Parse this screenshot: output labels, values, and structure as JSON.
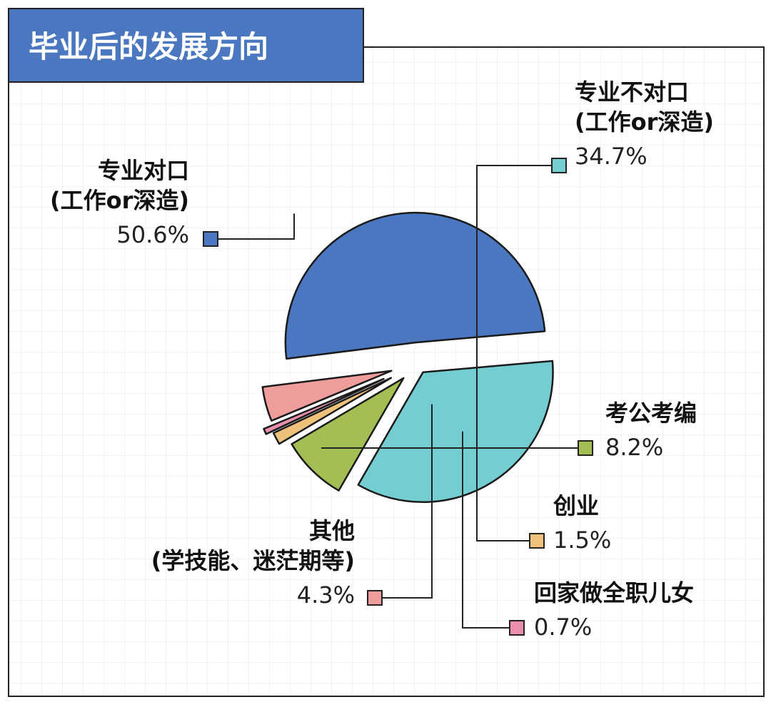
{
  "chart_data": {
    "type": "pie",
    "title": "毕业后的发展方向",
    "slices": [
      {
        "label_lines": [
          "专业不对口",
          "(工作or深造)"
        ],
        "value": 34.7,
        "value_label": "34.7%",
        "color": "#74cdd0"
      },
      {
        "label_lines": [
          "考公考编"
        ],
        "value": 8.2,
        "value_label": "8.2%",
        "color": "#a3be52"
      },
      {
        "label_lines": [
          "创业"
        ],
        "value": 1.5,
        "value_label": "1.5%",
        "color": "#eec27b"
      },
      {
        "label_lines": [
          "回家做全职儿女"
        ],
        "value": 0.7,
        "value_label": "0.7%",
        "color": "#ea8fab"
      },
      {
        "label_lines": [
          "其他",
          "(学技能、迷茫期等)"
        ],
        "value": 4.3,
        "value_label": "4.3%",
        "color": "#ee9c9c"
      },
      {
        "label_lines": [
          "专业对口",
          "(工作or深造)"
        ],
        "value": 50.6,
        "value_label": "50.6%",
        "color": "#4a77bf"
      }
    ],
    "title_bg_color": "#4a77bf",
    "grid": true,
    "legend": "none"
  }
}
